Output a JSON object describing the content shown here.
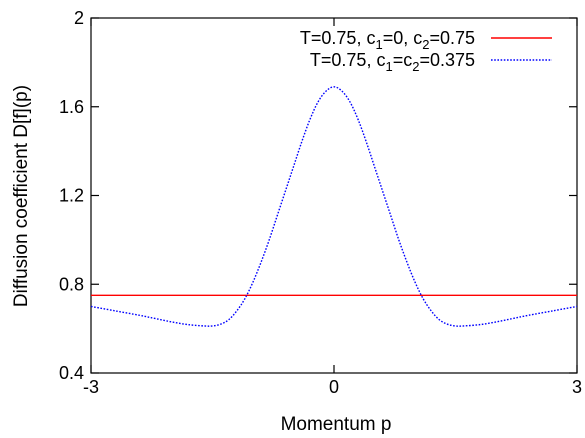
{
  "chart_data": {
    "type": "line",
    "xlabel": "Momentum p",
    "ylabel": "Diffusion coefficient D[f](p)",
    "xlim": [
      -3,
      3
    ],
    "ylim": [
      0.4,
      2.0
    ],
    "xticks": [
      {
        "value": -3,
        "label": "-3"
      },
      {
        "value": 0,
        "label": "0"
      },
      {
        "value": 3,
        "label": "3"
      }
    ],
    "yticks": [
      {
        "value": 0.4,
        "label": "0.4"
      },
      {
        "value": 0.8,
        "label": "0.8"
      },
      {
        "value": 1.2,
        "label": "1.2"
      },
      {
        "value": 1.6,
        "label": "1.6"
      },
      {
        "value": 2.0,
        "label": "2"
      }
    ],
    "grid": false,
    "legend_position": "top-right",
    "series": [
      {
        "name": "T=0.75, c1=0, c2=0.75",
        "label_parts": [
          "T=0.75, c",
          "1",
          "=0, c",
          "2",
          "=0.75"
        ],
        "color": "#ff0000",
        "style": "solid",
        "x": [
          -3,
          -2,
          -1,
          0,
          1,
          2,
          3
        ],
        "y": [
          0.75,
          0.75,
          0.75,
          0.75,
          0.75,
          0.75,
          0.75
        ]
      },
      {
        "name": "T=0.75, c1=c2=0.375",
        "label_parts": [
          "T=0.75, c",
          "1",
          "=c",
          "2",
          "=0.375"
        ],
        "color": "#0000ff",
        "style": "dotted",
        "x": [
          -3.0,
          -2.7,
          -2.4,
          -2.2,
          -2.0,
          -1.8,
          -1.6,
          -1.5,
          -1.4,
          -1.3,
          -1.2,
          -1.1,
          -1.0,
          -0.9,
          -0.8,
          -0.7,
          -0.6,
          -0.5,
          -0.4,
          -0.3,
          -0.2,
          -0.1,
          0.0,
          0.1,
          0.2,
          0.3,
          0.4,
          0.5,
          0.6,
          0.7,
          0.8,
          0.9,
          1.0,
          1.1,
          1.2,
          1.3,
          1.4,
          1.5,
          1.6,
          1.8,
          2.0,
          2.2,
          2.4,
          2.7,
          3.0
        ],
        "y": [
          0.7,
          0.68,
          0.66,
          0.645,
          0.63,
          0.618,
          0.612,
          0.612,
          0.62,
          0.64,
          0.68,
          0.735,
          0.81,
          0.9,
          1.0,
          1.11,
          1.22,
          1.33,
          1.44,
          1.54,
          1.62,
          1.67,
          1.69,
          1.67,
          1.62,
          1.54,
          1.44,
          1.33,
          1.22,
          1.11,
          1.0,
          0.9,
          0.81,
          0.735,
          0.68,
          0.64,
          0.62,
          0.612,
          0.612,
          0.618,
          0.63,
          0.645,
          0.66,
          0.68,
          0.7
        ]
      }
    ]
  }
}
